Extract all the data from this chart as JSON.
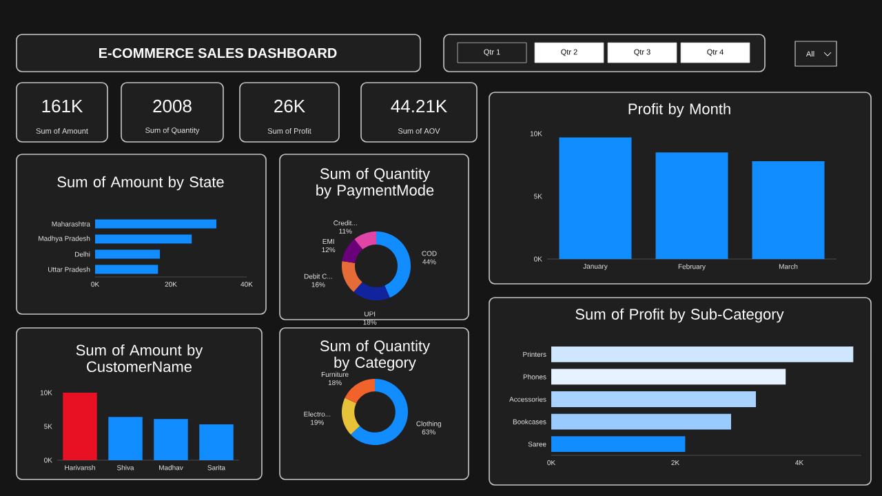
{
  "chart_data": [
    {
      "type": "other",
      "title": "E-COMMERCE SALES DASHBOARD",
      "annotations": [
        "161K",
        "Sum of Amount",
        "2008",
        "Sum of Quantity",
        "26K",
        "Sum of Profit",
        "44.21K",
        "Sum of AOV",
        "Qtr 1",
        "Qtr 2",
        "Qtr 3",
        "Qtr 4",
        "All"
      ]
    },
    {
      "type": "bar",
      "orientation": "horizontal",
      "title": "Sum of Amount by State",
      "categories": [
        "Maharashtra",
        "Madhya Pradesh",
        "Delhi",
        "Uttar Pradesh"
      ],
      "values": [
        32000,
        25500,
        17100,
        16600
      ],
      "color": "#118dff",
      "xlim": [
        0,
        40000
      ],
      "xticks": [
        {
          "value": 0,
          "label": "0K"
        },
        {
          "value": 20000,
          "label": "20K"
        },
        {
          "value": 40000,
          "label": "40K"
        }
      ]
    },
    {
      "type": "donut",
      "title": "Sum of Quantity by PaymentMode",
      "categories": [
        "COD",
        "UPI",
        "Debit C...",
        "EMI",
        "Credit..."
      ],
      "values": [
        44,
        18,
        16,
        12,
        11
      ],
      "value_labels": [
        "44%",
        "18%",
        "16%",
        "12%",
        "11%"
      ],
      "colors": [
        "#118dff",
        "#12239e",
        "#e66c37",
        "#6b007b",
        "#e044a7"
      ]
    },
    {
      "type": "bar",
      "title": "Profit by Month",
      "categories": [
        "January",
        "February",
        "March"
      ],
      "values": [
        9700,
        8500,
        7800
      ],
      "color": "#118dff",
      "ylim": [
        0,
        10000
      ],
      "yticks": [
        {
          "value": 0,
          "label": "0K"
        },
        {
          "value": 5000,
          "label": "5K"
        },
        {
          "value": 10000,
          "label": "10K"
        }
      ]
    },
    {
      "type": "bar",
      "title": "Sum of Amount by CustomerName",
      "categories": [
        "Harivansh",
        "Shiva",
        "Madhav",
        "Sarita"
      ],
      "values": [
        10000,
        6400,
        6100,
        5300
      ],
      "colors": [
        "#e81123",
        "#118dff",
        "#118dff",
        "#118dff"
      ],
      "ylim": [
        0,
        10000
      ],
      "yticks": [
        {
          "value": 0,
          "label": "0K"
        },
        {
          "value": 5000,
          "label": "5K"
        },
        {
          "value": 10000,
          "label": "10K"
        }
      ]
    },
    {
      "type": "donut",
      "title": "Sum of Quantity by Category",
      "categories": [
        "Clothing",
        "Electro...",
        "Furniture"
      ],
      "values": [
        63,
        19,
        18
      ],
      "value_labels": [
        "63%",
        "19%",
        "18%"
      ],
      "colors": [
        "#118dff",
        "#e8c33a",
        "#f2622b"
      ]
    },
    {
      "type": "bar",
      "orientation": "horizontal",
      "title": "Sum of Profit by Sub-Category",
      "categories": [
        "Printers",
        "Phones",
        "Accessories",
        "Bookcases",
        "Saree"
      ],
      "values": [
        4870,
        3780,
        3300,
        2900,
        2160
      ],
      "colors": [
        "#cfe6ff",
        "#e6f2ff",
        "#a8d2ff",
        "#99cbff",
        "#118dff"
      ],
      "xlim": [
        0,
        5000
      ],
      "xticks": [
        {
          "value": 0,
          "label": "0K"
        },
        {
          "value": 2000,
          "label": "2K"
        },
        {
          "value": 4000,
          "label": "4K"
        }
      ]
    }
  ]
}
